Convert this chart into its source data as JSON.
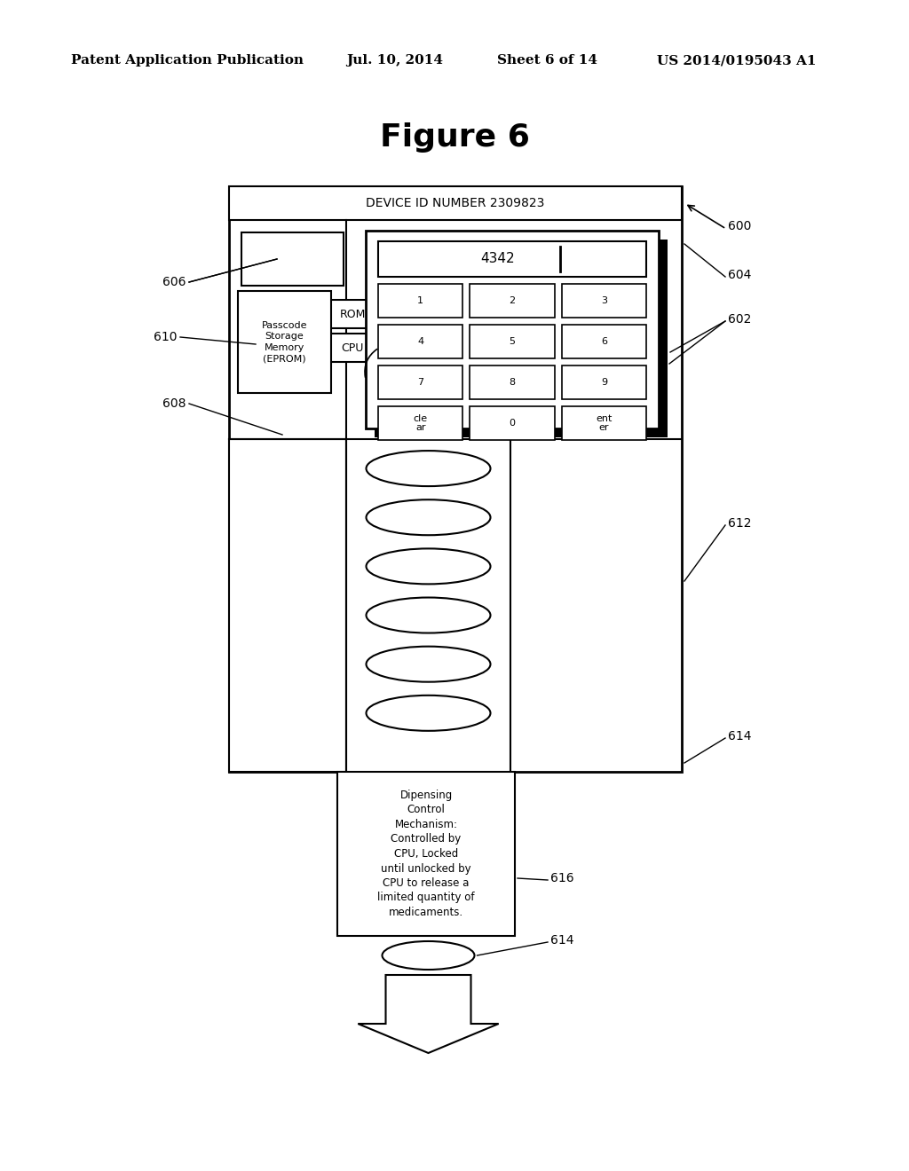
{
  "bg_color": "#ffffff",
  "title": "Figure 6",
  "header_text": "Patent Application Publication",
  "header_date": "Jul. 10, 2014  Sheet 6 of 14",
  "header_patent": "US 2014/0195043 A1",
  "device_id_label": "DEVICE ID NUMBER 2309823",
  "display_text": "4342",
  "keypad_keys": [
    [
      "1",
      "2",
      "3"
    ],
    [
      "4",
      "5",
      "6"
    ],
    [
      "7",
      "8",
      "9"
    ],
    [
      "cle\nar",
      "0",
      "ent\ner"
    ]
  ],
  "rom_label": "ROM",
  "cpu_label": "CPU",
  "passcode_label": "Passcode\nStorage\nMemory\n(EPROM)",
  "dispense_label": "Dipensing\nControl\nMechanism:\nControlled by\nCPU, Locked\nuntil unlocked by\nCPU to release a\nlimited quantity of\nmedicaments."
}
